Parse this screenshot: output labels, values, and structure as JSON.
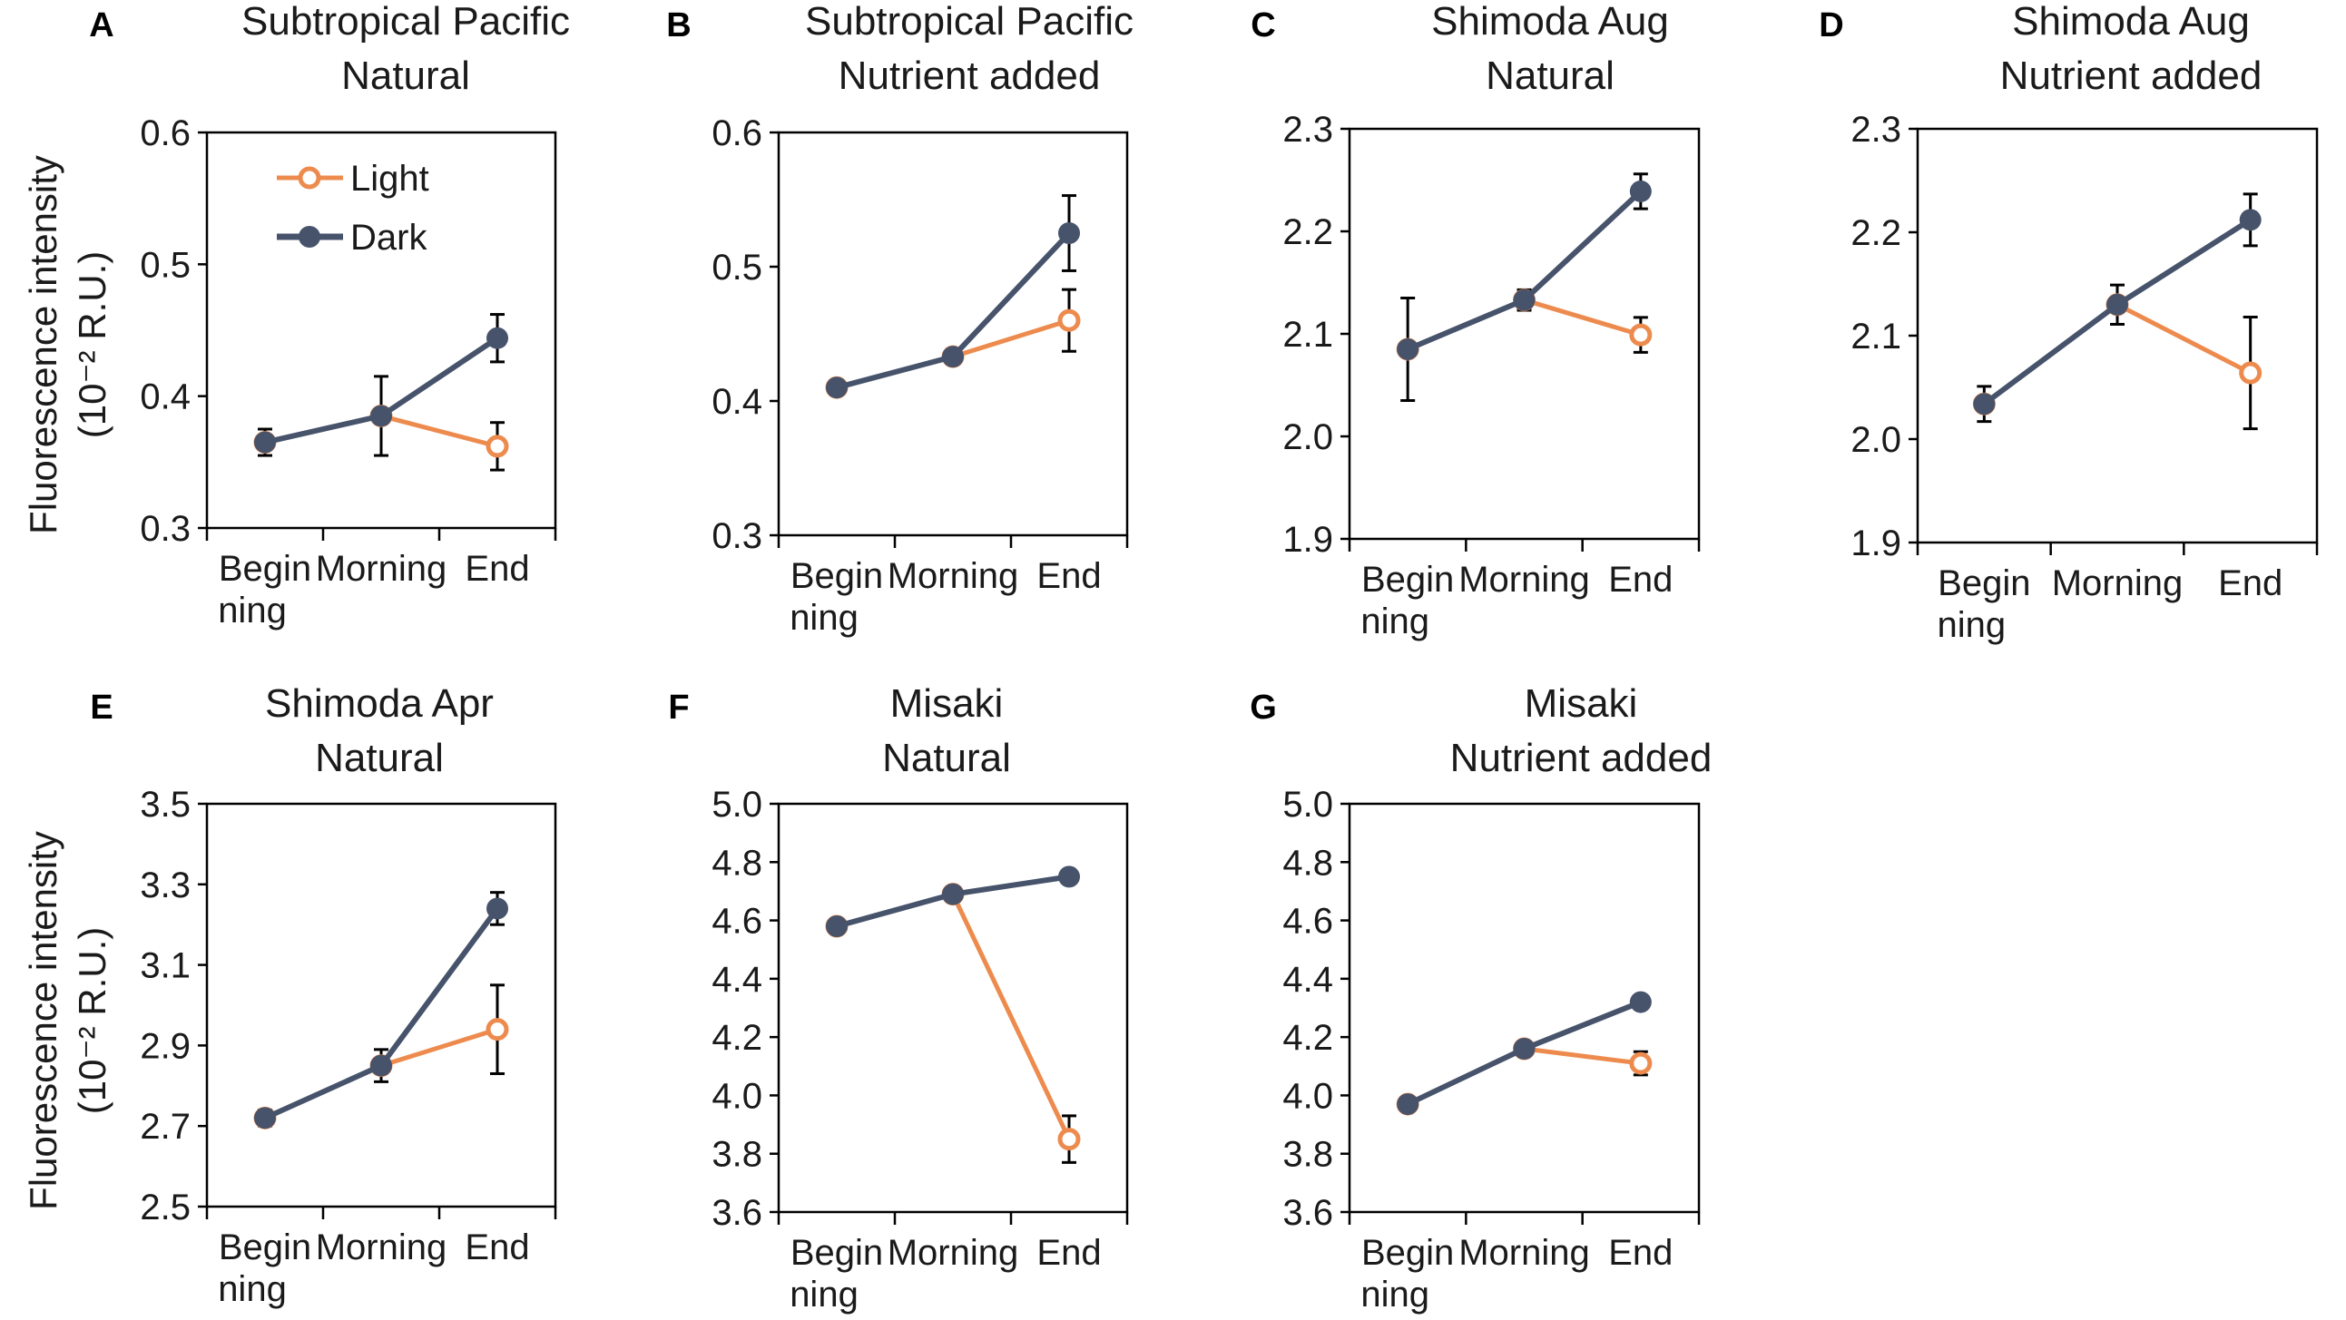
{
  "y_axis_label": {
    "line1": "Fluorescence intensity",
    "line2": "(10⁻² R.U.)"
  },
  "legend": {
    "light": "Light",
    "dark": "Dark"
  },
  "colors": {
    "light": "#ED8B4E",
    "dark": "#46536B",
    "axis": "#000000"
  },
  "chart_data": [
    {
      "panel": "A",
      "type": "line",
      "title": [
        "Subtropical Pacific",
        "Natural"
      ],
      "categories": [
        "Begin ning",
        "Morning",
        "End"
      ],
      "ylim": [
        0.3,
        0.6
      ],
      "yticks": [
        "0.3",
        "0.4",
        "0.5",
        "0.6"
      ],
      "series": [
        {
          "name": "Light",
          "values": [
            0.365,
            0.385,
            0.362
          ],
          "errors": [
            0,
            0,
            0.018
          ]
        },
        {
          "name": "Dark",
          "values": [
            0.365,
            0.385,
            0.444
          ],
          "errors": [
            0.01,
            0.03,
            0.018
          ]
        }
      ]
    },
    {
      "panel": "B",
      "type": "line",
      "title": [
        "Subtropical Pacific",
        "Nutrient added"
      ],
      "categories": [
        "Begin ning",
        "Morning",
        "End"
      ],
      "ylim": [
        0.3,
        0.6
      ],
      "yticks": [
        "0.3",
        "0.4",
        "0.5",
        "0.6"
      ],
      "series": [
        {
          "name": "Light",
          "values": [
            0.41,
            0.433,
            0.46
          ],
          "errors": [
            0,
            0,
            0.023
          ]
        },
        {
          "name": "Dark",
          "values": [
            0.41,
            0.433,
            0.525
          ],
          "errors": [
            0,
            0,
            0.028
          ]
        }
      ]
    },
    {
      "panel": "C",
      "type": "line",
      "title": [
        "Shimoda Aug",
        "Natural"
      ],
      "categories": [
        "Begin ning",
        "Morning",
        "End"
      ],
      "ylim": [
        1.9,
        2.3
      ],
      "yticks": [
        "1.9",
        "2.0",
        "2.1",
        "2.2",
        "2.3"
      ],
      "series": [
        {
          "name": "Light",
          "values": [
            2.085,
            2.133,
            2.099
          ],
          "errors": [
            0,
            0,
            0.017
          ]
        },
        {
          "name": "Dark",
          "values": [
            2.085,
            2.133,
            2.239
          ],
          "errors": [
            0.05,
            0.01,
            0.017
          ]
        }
      ]
    },
    {
      "panel": "D",
      "type": "line",
      "title": [
        "Shimoda Aug",
        "Nutrient added"
      ],
      "categories": [
        "Begin ning",
        "Morning",
        "End"
      ],
      "ylim": [
        1.9,
        2.3
      ],
      "yticks": [
        "1.9",
        "2.0",
        "2.1",
        "2.2",
        "2.3"
      ],
      "series": [
        {
          "name": "Light",
          "values": [
            2.034,
            2.13,
            2.064
          ],
          "errors": [
            0,
            0,
            0.054
          ]
        },
        {
          "name": "Dark",
          "values": [
            2.034,
            2.13,
            2.212
          ],
          "errors": [
            0.017,
            0.019,
            0.025
          ]
        }
      ]
    },
    {
      "panel": "E",
      "type": "line",
      "title": [
        "Shimoda Apr",
        "Natural"
      ],
      "categories": [
        "Begin ning",
        "Morning",
        "End"
      ],
      "ylim": [
        2.5,
        3.5
      ],
      "yticks": [
        "2.5",
        "2.7",
        "2.9",
        "3.1",
        "3.3",
        "3.5"
      ],
      "series": [
        {
          "name": "Light",
          "values": [
            2.72,
            2.85,
            2.94
          ],
          "errors": [
            0,
            0,
            0.11
          ]
        },
        {
          "name": "Dark",
          "values": [
            2.72,
            2.85,
            3.24
          ],
          "errors": [
            0.02,
            0.04,
            0.04
          ]
        }
      ]
    },
    {
      "panel": "F",
      "type": "line",
      "title": [
        "Misaki",
        "Natural"
      ],
      "categories": [
        "Begin ning",
        "Morning",
        "End"
      ],
      "ylim": [
        3.6,
        5.0
      ],
      "yticks": [
        "3.6",
        "3.8",
        "4.0",
        "4.2",
        "4.4",
        "4.6",
        "4.8",
        "5.0"
      ],
      "series": [
        {
          "name": "Light",
          "values": [
            4.58,
            4.69,
            3.85
          ],
          "errors": [
            0,
            0,
            0.08
          ]
        },
        {
          "name": "Dark",
          "values": [
            4.58,
            4.69,
            4.75
          ],
          "errors": [
            0,
            0,
            0
          ]
        }
      ]
    },
    {
      "panel": "G",
      "type": "line",
      "title": [
        "Misaki",
        "Nutrient added"
      ],
      "categories": [
        "Begin ning",
        "Morning",
        "End"
      ],
      "ylim": [
        3.6,
        5.0
      ],
      "yticks": [
        "3.6",
        "3.8",
        "4.0",
        "4.2",
        "4.4",
        "4.6",
        "4.8",
        "5.0"
      ],
      "series": [
        {
          "name": "Light",
          "values": [
            3.97,
            4.16,
            4.11
          ],
          "errors": [
            0,
            0,
            0.04
          ]
        },
        {
          "name": "Dark",
          "values": [
            3.97,
            4.16,
            4.32
          ],
          "errors": [
            0,
            0,
            0
          ]
        }
      ]
    }
  ]
}
